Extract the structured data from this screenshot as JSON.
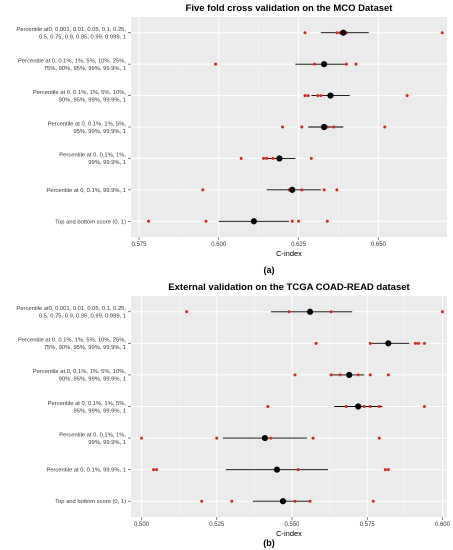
{
  "chart_data": [
    {
      "type": "scatter",
      "panel_label": "(a)",
      "title": "Five fold  cross validation on the MCO Dataset",
      "xlabel": "C-index",
      "xlim": [
        0.5725,
        0.6715
      ],
      "xticks": [
        "0.575",
        "0.600",
        "0.625",
        "0.650"
      ],
      "tick_values": [
        0.575,
        0.6,
        0.625,
        0.65
      ],
      "grid": true,
      "categories": [
        [
          "Percentile at0, 0.001, 0.01, 0.05, 0.1, 0.25,",
          "0.5, 0.75, 0.9, 0.95, 0.99, 0.999, 1"
        ],
        [
          "Percentile at 0, 0.1%, 1%, 5%, 10%, 25%,",
          "75%, 90%, 95%, 99%, 99.9%, 1"
        ],
        [
          "Percentile at 0, 0.1%, 1%, 5%, 10%,",
          "90%, 95%, 99%, 99.9%, 1"
        ],
        [
          "Percentile at 0, 0.1%, 1%, 5%,",
          "95%, 99%, 99.9%, 1"
        ],
        [
          "Percentile at 0, 0.1%, 1%,",
          "99%, 99.9%, 1"
        ],
        [
          "Percentile at 0, 0.1%, 99.9%, 1"
        ],
        [
          "Top and bottom score (0, 1)"
        ]
      ],
      "rows": [
        {
          "mean": 0.639,
          "ci": [
            0.632,
            0.647
          ],
          "points": [
            0.627,
            0.637,
            0.638,
            0.64,
            0.67
          ]
        },
        {
          "mean": 0.633,
          "ci": [
            0.624,
            0.64
          ],
          "points": [
            0.599,
            0.63,
            0.64,
            0.643
          ]
        },
        {
          "mean": 0.635,
          "ci": [
            0.629,
            0.641
          ],
          "points": [
            0.627,
            0.628,
            0.631,
            0.632,
            0.659
          ]
        },
        {
          "mean": 0.633,
          "ci": [
            0.628,
            0.639
          ],
          "points": [
            0.62,
            0.626,
            0.634,
            0.636,
            0.652
          ]
        },
        {
          "mean": 0.619,
          "ci": [
            0.614,
            0.624
          ],
          "points": [
            0.607,
            0.614,
            0.615,
            0.617,
            0.629
          ]
        },
        {
          "mean": 0.623,
          "ci": [
            0.615,
            0.632
          ],
          "points": [
            0.595,
            0.622,
            0.626,
            0.633,
            0.637
          ]
        },
        {
          "mean": 0.611,
          "ci": [
            0.6,
            0.622
          ],
          "points": [
            0.578,
            0.596,
            0.623,
            0.625,
            0.634
          ]
        }
      ]
    },
    {
      "type": "scatter",
      "panel_label": "(b)",
      "title": "External validation on the TCGA COAD-READ dataset",
      "xlabel": "C-index",
      "xlim": [
        0.4965,
        0.6015
      ],
      "xticks": [
        "0.500",
        "0.525",
        "0.550",
        "0.575",
        "0.600"
      ],
      "tick_values": [
        0.5,
        0.525,
        0.55,
        0.575,
        0.6
      ],
      "grid": true,
      "categories": [
        [
          "Percentile at0, 0.001, 0.01, 0.05, 0.1, 0.25,",
          "0.5, 0.75, 0.9, 0.95, 0.99, 0.999, 1"
        ],
        [
          "Percentile at 0, 0.1%, 1%, 5%, 10%, 25%,",
          "75%, 90%, 95%, 99%, 99.9%, 1"
        ],
        [
          "Percentile at 0, 0.1%, 1%, 5%, 10%,",
          "90%, 95%, 99%, 99.9%, 1"
        ],
        [
          "Percentile at 0, 0.1%, 1%, 5%,",
          "95%, 99%, 99.9%, 1"
        ],
        [
          "Percentile at 0, 0.1%, 1%,",
          "99%, 99.9%, 1"
        ],
        [
          "Percentile at 0, 0.1%, 99.9%, 1"
        ],
        [
          "Top and bottom score (0, 1)"
        ]
      ],
      "rows": [
        {
          "mean": 0.556,
          "ci": [
            0.543,
            0.57
          ],
          "points": [
            0.515,
            0.549,
            0.563,
            0.6
          ]
        },
        {
          "mean": 0.582,
          "ci": [
            0.576,
            0.589
          ],
          "points": [
            0.558,
            0.576,
            0.591,
            0.592,
            0.594
          ]
        },
        {
          "mean": 0.569,
          "ci": [
            0.563,
            0.574
          ],
          "points": [
            0.551,
            0.563,
            0.566,
            0.572,
            0.576,
            0.582
          ]
        },
        {
          "mean": 0.572,
          "ci": [
            0.564,
            0.58
          ],
          "points": [
            0.542,
            0.568,
            0.574,
            0.576,
            0.579,
            0.594
          ]
        },
        {
          "mean": 0.541,
          "ci": [
            0.527,
            0.555
          ],
          "points": [
            0.5,
            0.525,
            0.543,
            0.557,
            0.579
          ]
        },
        {
          "mean": 0.545,
          "ci": [
            0.528,
            0.562
          ],
          "points": [
            0.504,
            0.505,
            0.552,
            0.581,
            0.582
          ]
        },
        {
          "mean": 0.547,
          "ci": [
            0.537,
            0.556
          ],
          "points": [
            0.52,
            0.53,
            0.551,
            0.556,
            0.577
          ]
        }
      ]
    }
  ],
  "colors": {
    "panel_bg": "#ebebeb",
    "grid": "#ffffff",
    "point": "#d7261e",
    "mean": "#000000",
    "ci_line": "#000000"
  }
}
